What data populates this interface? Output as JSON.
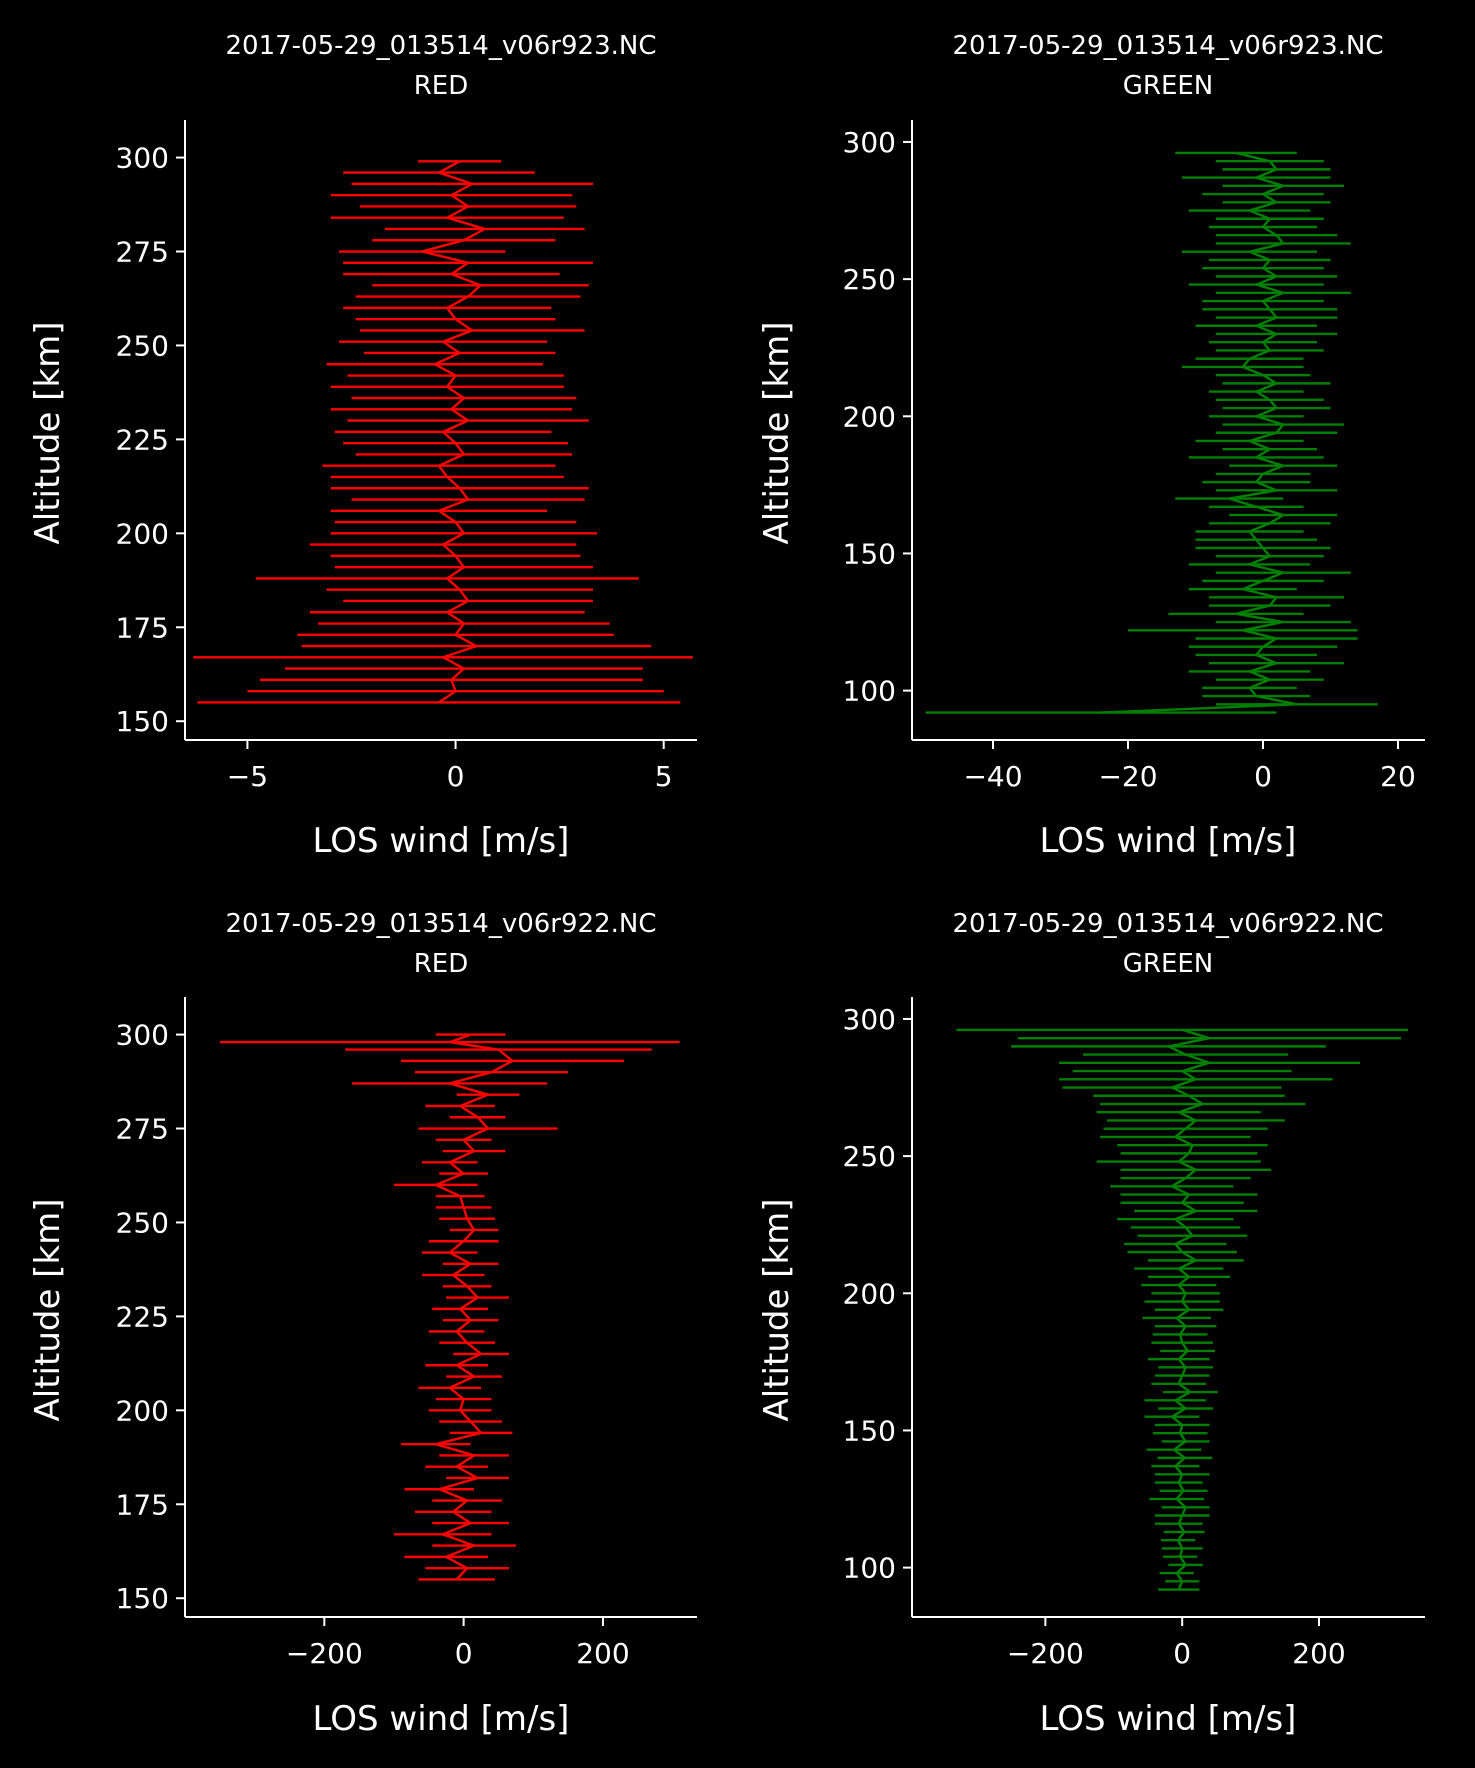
{
  "chart_data": [
    {
      "type": "line",
      "title_line1": "2017-05-29_013514_v06r923.NC",
      "title_line2": "RED",
      "xlabel": "LOS wind [m/s]",
      "ylabel": "Altitude [km]",
      "xlim": [
        -6.5,
        5.8
      ],
      "ylim": [
        145,
        310
      ],
      "xticks": [
        -5,
        0,
        5
      ],
      "yticks": [
        150,
        175,
        200,
        225,
        250,
        275,
        300
      ],
      "color": "#ff0000",
      "series": [
        {
          "altitude": [
            155,
            158,
            161,
            164,
            167,
            170,
            173,
            176,
            179,
            182,
            185,
            188,
            191,
            194,
            197,
            200,
            203,
            206,
            209,
            212,
            215,
            218,
            221,
            224,
            227,
            230,
            233,
            236,
            239,
            242,
            245,
            248,
            251,
            254,
            257,
            260,
            263,
            266,
            269,
            272,
            275,
            278,
            281,
            284,
            287,
            290,
            293,
            296,
            299
          ],
          "wind": [
            -0.4,
            0.0,
            -0.1,
            0.2,
            -0.3,
            0.5,
            0.0,
            0.2,
            -0.2,
            0.3,
            0.1,
            -0.2,
            0.2,
            0.0,
            -0.3,
            0.2,
            0.0,
            -0.4,
            0.3,
            0.1,
            -0.2,
            -0.4,
            0.2,
            0.0,
            -0.3,
            0.3,
            -0.1,
            0.2,
            -0.2,
            0.0,
            -0.5,
            0.1,
            -0.3,
            0.4,
            0.0,
            -0.2,
            0.3,
            0.6,
            -0.1,
            0.3,
            -0.8,
            0.2,
            0.7,
            -0.2,
            0.3,
            -0.1,
            0.4,
            -0.4,
            0.1
          ],
          "error": [
            5.8,
            5.0,
            4.6,
            4.3,
            6.0,
            4.2,
            3.8,
            3.5,
            3.3,
            3.0,
            3.2,
            4.6,
            3.1,
            3.0,
            3.2,
            3.2,
            2.9,
            2.6,
            2.8,
            3.1,
            2.8,
            2.8,
            2.6,
            2.7,
            2.6,
            2.9,
            2.9,
            2.7,
            2.8,
            2.6,
            2.6,
            2.3,
            2.5,
            2.7,
            2.4,
            2.5,
            2.7,
            2.6,
            2.6,
            3.0,
            2.0,
            2.2,
            2.4,
            2.8,
            2.6,
            2.9,
            2.9,
            2.3,
            1.0
          ]
        }
      ]
    },
    {
      "type": "line",
      "title_line1": "2017-05-29_013514_v06r923.NC",
      "title_line2": "GREEN",
      "xlabel": "LOS wind [m/s]",
      "ylabel": "Altitude [km]",
      "xlim": [
        -52,
        24
      ],
      "ylim": [
        82,
        308
      ],
      "xticks": [
        -40,
        -20,
        0,
        20
      ],
      "yticks": [
        100,
        150,
        200,
        250,
        300
      ],
      "color": "#008000",
      "series": [
        {
          "altitude": [
            92,
            95,
            98,
            101,
            104,
            107,
            110,
            113,
            116,
            119,
            122,
            125,
            128,
            131,
            134,
            137,
            140,
            143,
            146,
            149,
            152,
            155,
            158,
            161,
            164,
            167,
            170,
            173,
            176,
            179,
            182,
            185,
            188,
            191,
            194,
            197,
            200,
            203,
            206,
            209,
            212,
            215,
            218,
            221,
            224,
            227,
            230,
            233,
            236,
            239,
            242,
            245,
            248,
            251,
            254,
            257,
            260,
            263,
            266,
            269,
            272,
            275,
            278,
            281,
            284,
            287,
            290,
            293,
            296
          ],
          "wind": [
            -24,
            5,
            -1,
            -2,
            1,
            -2,
            2,
            -1,
            0,
            2,
            -3,
            3,
            -4,
            1,
            2,
            -3,
            0,
            3,
            -2,
            1,
            0,
            -1,
            -2,
            1,
            3,
            -1,
            -5,
            2,
            -1,
            0,
            3,
            -1,
            1,
            -2,
            2,
            3,
            -1,
            2,
            1,
            -1,
            2,
            0,
            -3,
            -2,
            1,
            0,
            2,
            -1,
            2,
            1,
            0,
            3,
            -1,
            2,
            0,
            1,
            -2,
            3,
            2,
            0,
            1,
            -2,
            2,
            0,
            3,
            -1,
            2,
            1,
            -4
          ],
          "error": [
            26,
            12,
            8,
            7,
            8,
            9,
            10,
            9,
            11,
            12,
            17,
            10,
            10,
            9,
            10,
            8,
            9,
            10,
            9,
            8,
            10,
            9,
            8,
            9,
            8,
            7,
            8,
            9,
            8,
            7,
            8,
            10,
            7,
            8,
            9,
            9,
            7,
            8,
            8,
            7,
            8,
            7,
            9,
            8,
            8,
            8,
            9,
            9,
            9,
            10,
            9,
            10,
            10,
            9,
            9,
            9,
            10,
            10,
            9,
            8,
            8,
            9,
            8,
            9,
            9,
            11,
            8,
            8,
            9
          ]
        }
      ]
    },
    {
      "type": "line",
      "title_line1": "2017-05-29_013514_v06r922.NC",
      "title_line2": "RED",
      "xlabel": "LOS wind [m/s]",
      "ylabel": "Altitude [km]",
      "xlim": [
        -400,
        335
      ],
      "ylim": [
        145,
        310
      ],
      "xticks": [
        -200,
        0,
        200
      ],
      "yticks": [
        150,
        175,
        200,
        225,
        250,
        275,
        300
      ],
      "color": "#ff0000",
      "series": [
        {
          "altitude": [
            155,
            158,
            161,
            164,
            167,
            170,
            173,
            176,
            179,
            182,
            185,
            188,
            191,
            194,
            197,
            200,
            203,
            206,
            209,
            212,
            215,
            218,
            221,
            224,
            227,
            230,
            233,
            236,
            239,
            242,
            245,
            248,
            251,
            254,
            257,
            260,
            263,
            266,
            269,
            272,
            275,
            278,
            281,
            284,
            287,
            290,
            293,
            296,
            298,
            300
          ],
          "wind": [
            -10,
            5,
            -25,
            15,
            -30,
            10,
            -15,
            5,
            -35,
            20,
            -10,
            15,
            -40,
            25,
            10,
            -5,
            0,
            -20,
            15,
            -10,
            25,
            5,
            -10,
            10,
            -5,
            20,
            5,
            -15,
            10,
            -20,
            0,
            15,
            5,
            0,
            -5,
            -40,
            0,
            -20,
            15,
            0,
            35,
            20,
            -5,
            35,
            -20,
            40,
            70,
            50,
            -20,
            10
          ],
          "error": [
            55,
            60,
            60,
            60,
            70,
            55,
            55,
            50,
            50,
            45,
            45,
            50,
            50,
            45,
            45,
            45,
            40,
            45,
            40,
            45,
            40,
            40,
            40,
            40,
            40,
            45,
            35,
            45,
            40,
            40,
            50,
            35,
            40,
            40,
            35,
            60,
            35,
            40,
            45,
            40,
            100,
            40,
            50,
            45,
            140,
            110,
            160,
            220,
            330,
            50
          ]
        }
      ]
    },
    {
      "type": "line",
      "title_line1": "2017-05-29_013514_v06r922.NC",
      "title_line2": "GREEN",
      "xlabel": "LOS wind [m/s]",
      "ylabel": "Altitude [km]",
      "xlim": [
        -395,
        355
      ],
      "ylim": [
        82,
        308
      ],
      "xticks": [
        -200,
        0,
        200
      ],
      "yticks": [
        100,
        150,
        200,
        250,
        300
      ],
      "color": "#008000",
      "series": [
        {
          "altitude": [
            92,
            95,
            98,
            101,
            104,
            107,
            110,
            113,
            116,
            119,
            122,
            125,
            128,
            131,
            134,
            137,
            140,
            143,
            146,
            149,
            152,
            155,
            158,
            161,
            164,
            167,
            170,
            173,
            176,
            179,
            182,
            185,
            188,
            191,
            194,
            197,
            200,
            203,
            206,
            209,
            212,
            215,
            218,
            221,
            224,
            227,
            230,
            233,
            236,
            239,
            242,
            245,
            248,
            251,
            254,
            257,
            260,
            263,
            266,
            269,
            272,
            275,
            278,
            281,
            284,
            287,
            290,
            293,
            296
          ],
          "wind": [
            -5,
            0,
            -8,
            5,
            -3,
            0,
            -6,
            3,
            -5,
            0,
            5,
            -8,
            2,
            -5,
            0,
            -10,
            4,
            -12,
            5,
            -3,
            0,
            -15,
            5,
            -10,
            12,
            -5,
            0,
            5,
            -5,
            8,
            0,
            -3,
            5,
            -8,
            10,
            0,
            5,
            -5,
            10,
            -5,
            20,
            0,
            -10,
            15,
            5,
            -10,
            20,
            0,
            10,
            -15,
            5,
            20,
            -5,
            10,
            15,
            -10,
            5,
            20,
            -5,
            30,
            10,
            -15,
            20,
            0,
            40,
            5,
            -20,
            40,
            0
          ],
          "error": [
            30,
            25,
            25,
            25,
            25,
            30,
            25,
            30,
            35,
            40,
            35,
            40,
            35,
            35,
            40,
            35,
            40,
            40,
            35,
            40,
            40,
            40,
            40,
            45,
            40,
            40,
            40,
            40,
            45,
            40,
            45,
            40,
            45,
            50,
            50,
            55,
            50,
            55,
            60,
            65,
            70,
            80,
            75,
            80,
            80,
            85,
            90,
            90,
            100,
            90,
            95,
            110,
            120,
            100,
            110,
            110,
            120,
            130,
            120,
            150,
            140,
            160,
            200,
            160,
            220,
            150,
            230,
            280,
            330
          ]
        }
      ]
    }
  ]
}
